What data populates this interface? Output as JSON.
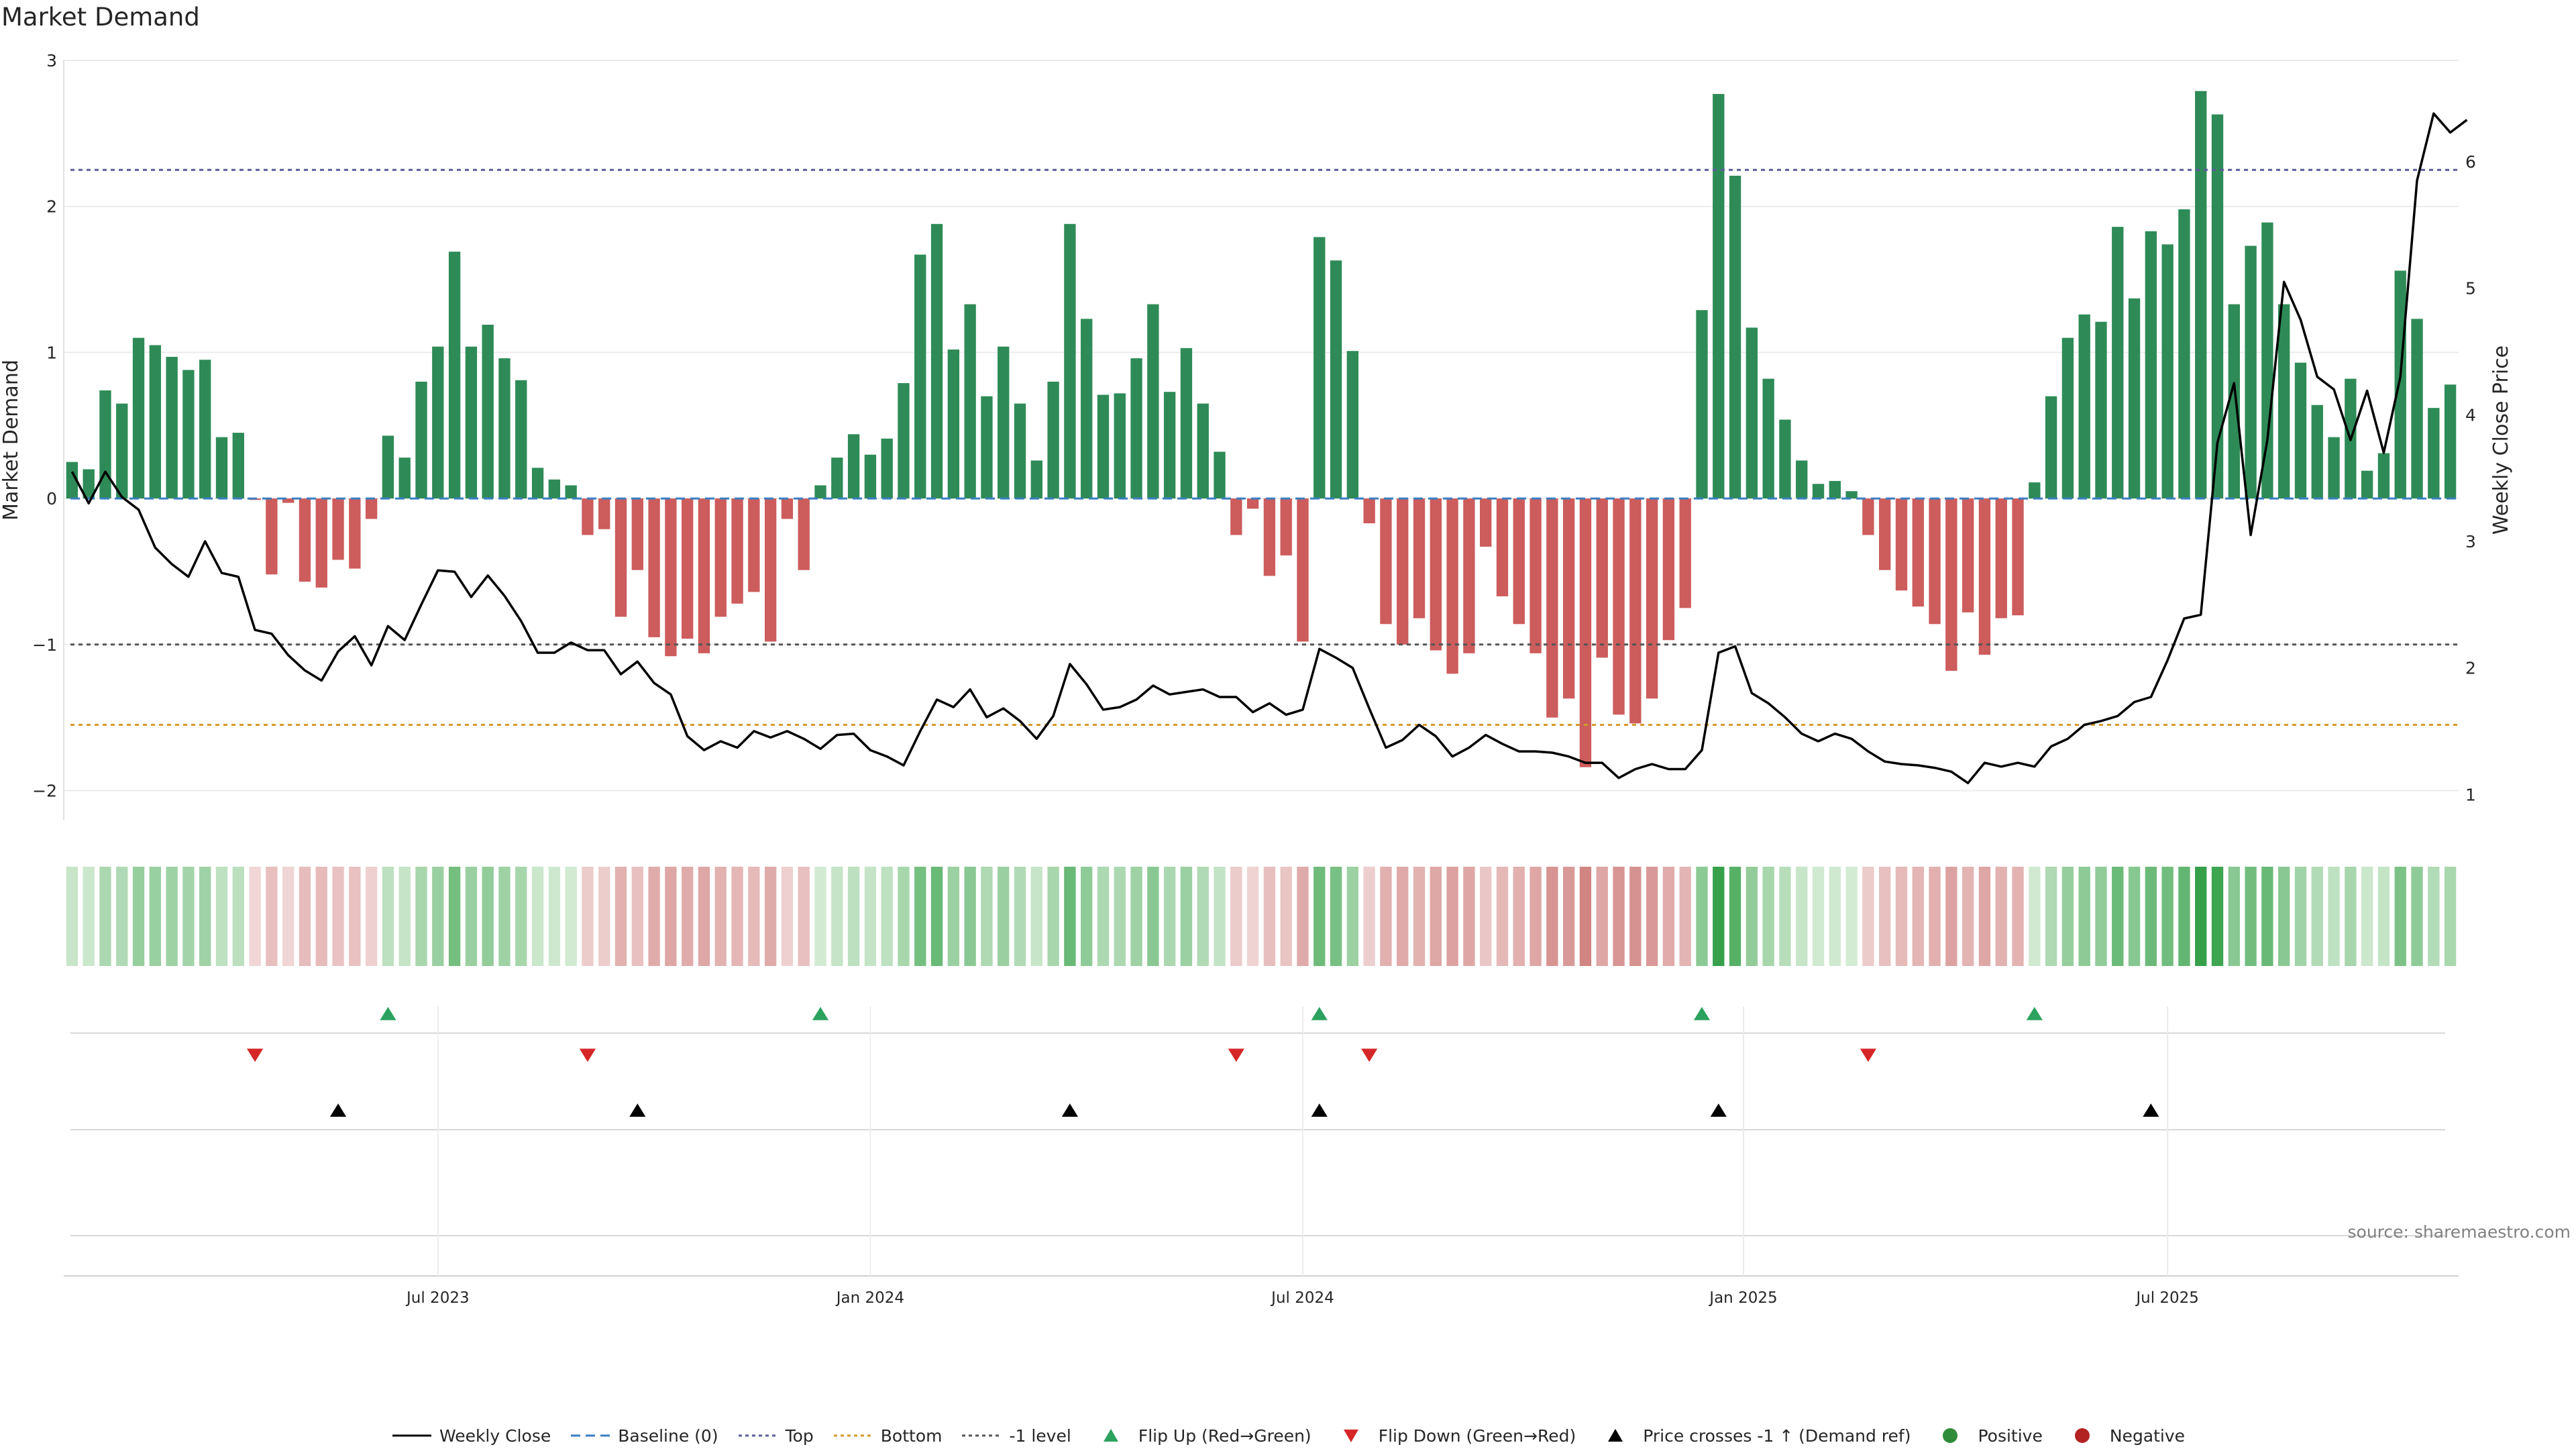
{
  "chart_data": {
    "type": "bar",
    "title": "Market Demand",
    "ylabel_left": "Market Demand",
    "ylabel_right": "Weekly Close Price",
    "source": "source: sharemaestro.com",
    "y_left_range": [
      -2.2,
      3.0
    ],
    "y_left_ticks": [
      {
        "value": 3,
        "label": "3"
      },
      {
        "value": 2,
        "label": "2"
      },
      {
        "value": 1,
        "label": "1"
      },
      {
        "value": 0,
        "label": "0"
      },
      {
        "value": -1,
        "label": "−1"
      },
      {
        "value": -2,
        "label": "−2"
      }
    ],
    "y_right_range": [
      0.8,
      6.8
    ],
    "y_right_ticks": [
      {
        "value": 6,
        "label": "6"
      },
      {
        "value": 5,
        "label": "5"
      },
      {
        "value": 4,
        "label": "4"
      },
      {
        "value": 3,
        "label": "3"
      },
      {
        "value": 2,
        "label": "2"
      },
      {
        "value": 1,
        "label": "1"
      }
    ],
    "x_ticks": [
      {
        "label": "Jul 2023",
        "week": 22
      },
      {
        "label": "Jan 2024",
        "week": 48
      },
      {
        "label": "Jul 2024",
        "week": 74
      },
      {
        "label": "Jan 2025",
        "week": 100.5
      },
      {
        "label": "Jul 2025",
        "week": 126
      }
    ],
    "reference_lines": [
      {
        "name": "Top",
        "value": 2.25,
        "color": "#5b5b9b"
      },
      {
        "name": "-1 level",
        "value": -1.0,
        "color": "#555555"
      },
      {
        "name": "Bottom",
        "value": -1.55,
        "color": "#d49a2e"
      }
    ],
    "demand": [
      0.25,
      0.2,
      0.74,
      0.65,
      1.1,
      1.05,
      0.97,
      0.88,
      0.95,
      0.42,
      0.45,
      -0.01,
      -0.52,
      -0.03,
      -0.57,
      -0.61,
      -0.42,
      -0.48,
      -0.14,
      0.43,
      0.28,
      0.8,
      1.04,
      1.69,
      1.04,
      1.19,
      0.96,
      0.81,
      0.21,
      0.13,
      0.09,
      -0.25,
      -0.21,
      -0.81,
      -0.49,
      -0.95,
      -1.08,
      -0.96,
      -1.06,
      -0.81,
      -0.72,
      -0.64,
      -0.98,
      -0.14,
      -0.49,
      0.09,
      0.28,
      0.44,
      0.3,
      0.41,
      0.79,
      1.67,
      1.88,
      1.02,
      1.33,
      0.7,
      1.04,
      0.65,
      0.26,
      0.8,
      1.88,
      1.23,
      0.71,
      0.72,
      0.96,
      1.33,
      0.73,
      1.03,
      0.65,
      0.32,
      -0.25,
      -0.07,
      -0.53,
      -0.39,
      -0.98,
      1.79,
      1.63,
      1.01,
      -0.17,
      -0.86,
      -1.0,
      -0.82,
      -1.04,
      -1.2,
      -1.06,
      -0.33,
      -0.67,
      -0.86,
      -1.06,
      -1.5,
      -1.37,
      -1.84,
      -1.09,
      -1.48,
      -1.54,
      -1.37,
      -0.97,
      -0.75,
      1.29,
      2.77,
      2.21,
      1.17,
      0.82,
      0.54,
      0.26,
      0.1,
      0.12,
      0.05,
      -0.25,
      -0.49,
      -0.63,
      -0.74,
      -0.86,
      -1.18,
      -0.78,
      -1.07,
      -0.82,
      -0.8,
      0.11,
      0.7,
      1.1,
      1.26,
      1.21,
      1.86,
      1.37,
      1.83,
      1.74,
      1.98,
      2.79,
      2.63,
      1.33,
      1.73,
      1.89,
      1.33,
      0.93,
      0.64,
      0.42,
      0.82,
      0.19,
      0.31,
      1.56,
      1.23,
      0.62,
      0.78
    ],
    "close": [
      3.55,
      3.3,
      3.55,
      3.35,
      3.25,
      2.95,
      2.82,
      2.72,
      3.0,
      2.75,
      2.72,
      2.3,
      2.27,
      2.1,
      1.98,
      1.9,
      2.13,
      2.25,
      2.02,
      2.33,
      2.22,
      2.5,
      2.77,
      2.76,
      2.56,
      2.73,
      2.57,
      2.37,
      2.12,
      2.12,
      2.2,
      2.14,
      2.14,
      1.95,
      2.05,
      1.88,
      1.79,
      1.46,
      1.35,
      1.42,
      1.37,
      1.5,
      1.45,
      1.5,
      1.44,
      1.36,
      1.47,
      1.48,
      1.35,
      1.3,
      1.23,
      1.5,
      1.75,
      1.69,
      1.83,
      1.61,
      1.68,
      1.58,
      1.44,
      1.62,
      2.03,
      1.87,
      1.67,
      1.69,
      1.75,
      1.86,
      1.79,
      1.81,
      1.83,
      1.77,
      1.77,
      1.65,
      1.72,
      1.63,
      1.67,
      2.15,
      2.08,
      2.0,
      1.68,
      1.37,
      1.43,
      1.55,
      1.46,
      1.3,
      1.37,
      1.47,
      1.4,
      1.34,
      1.34,
      1.33,
      1.3,
      1.25,
      1.25,
      1.13,
      1.2,
      1.24,
      1.2,
      1.2,
      1.35,
      2.12,
      2.17,
      1.8,
      1.72,
      1.61,
      1.48,
      1.42,
      1.48,
      1.44,
      1.34,
      1.26,
      1.24,
      1.23,
      1.21,
      1.18,
      1.09,
      1.25,
      1.22,
      1.25,
      1.22,
      1.38,
      1.44,
      1.55,
      1.58,
      1.62,
      1.73,
      1.77,
      2.06,
      2.39,
      2.42,
      3.78,
      4.25,
      3.05,
      3.8,
      5.05,
      4.75,
      4.3,
      4.2,
      3.8,
      4.19,
      3.7,
      4.3,
      5.85,
      6.38,
      6.23,
      6.33
    ],
    "flip_up_weeks": [
      19,
      45,
      75,
      98,
      118
    ],
    "flip_down_weeks": [
      11,
      31,
      70,
      78,
      108
    ],
    "price_cross_weeks": [
      16,
      34,
      60,
      75,
      99,
      125
    ],
    "legend": [
      {
        "label": "Weekly Close",
        "kind": "solid-line",
        "color": "#000000"
      },
      {
        "label": "Baseline (0)",
        "kind": "dashed-line",
        "color": "#3a7ec2"
      },
      {
        "label": "Top",
        "kind": "dotted-line",
        "color": "#5b5b9b"
      },
      {
        "label": "Bottom",
        "kind": "dotted-line",
        "color": "#d49a2e"
      },
      {
        "label": "-1 level",
        "kind": "dotted-line",
        "color": "#555555"
      },
      {
        "label": "Flip Up (Red→Green)",
        "kind": "triangle-up",
        "color": "#2ca25f"
      },
      {
        "label": "Flip Down (Green→Red)",
        "kind": "triangle-down",
        "color": "#d62728"
      },
      {
        "label": "Price crosses -1 ↑ (Demand ref)",
        "kind": "triangle-up",
        "color": "#000000"
      },
      {
        "label": "Positive",
        "kind": "dot",
        "color": "#2e8b3a"
      },
      {
        "label": "Negative",
        "kind": "dot",
        "color": "#b22222"
      }
    ],
    "colors": {
      "positive_bar": "#2e8b57",
      "negative_bar": "#cd5c5c",
      "flip_up": "#2ca25f",
      "flip_down": "#d62728",
      "cross": "#000000"
    }
  }
}
